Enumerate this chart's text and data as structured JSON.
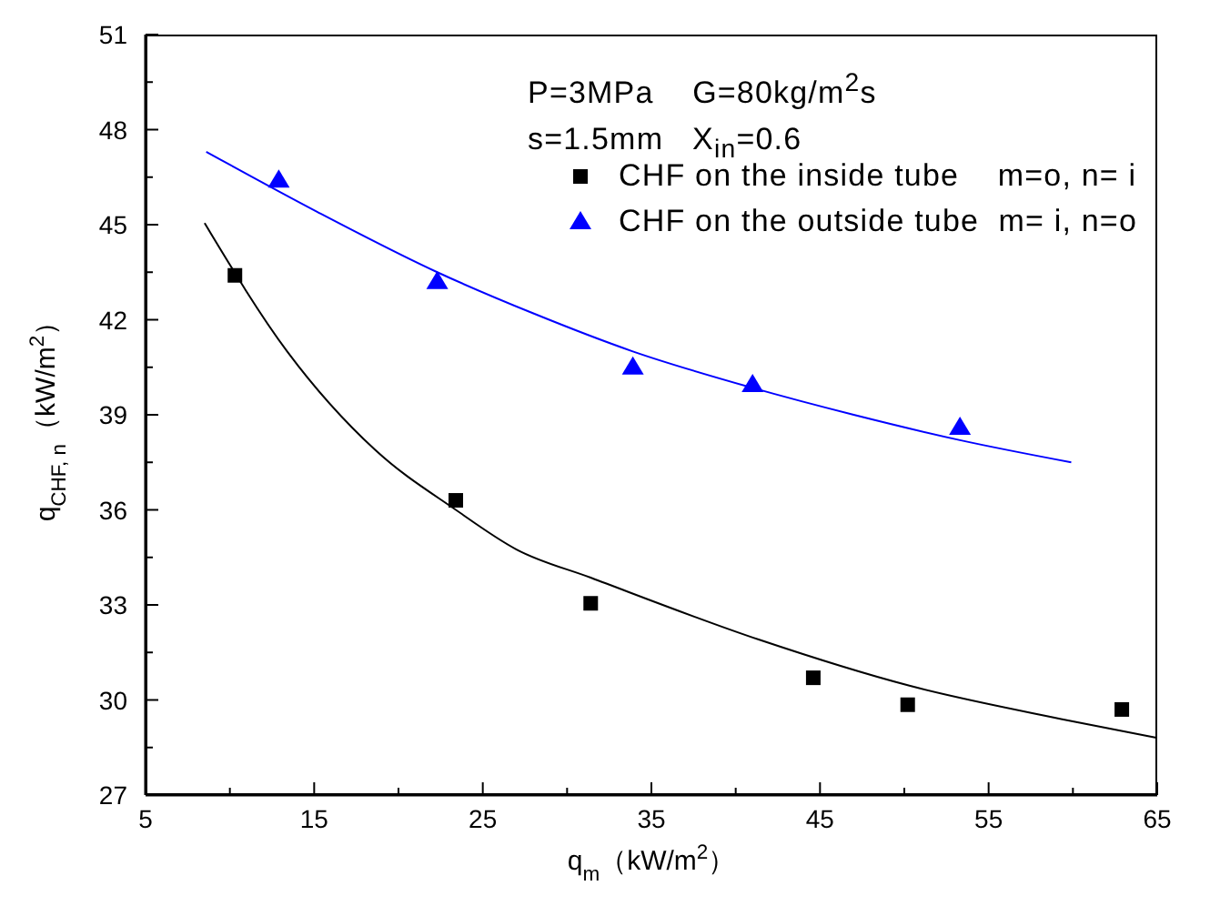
{
  "chart_data": {
    "type": "scatter",
    "xlabel": "q$_{m}$（kW/m$^{2}$）",
    "ylabel": "q$_{CHF, n}$（kW/m$^{2}$）",
    "annotations": [
      "P=3MPa    G=80kg/m$^{2}$s",
      "s=1.5mm   X$_{in}$=0.6"
    ],
    "xlim": [
      5,
      65
    ],
    "xticks": [
      5,
      {
        "value": 10,
        "label": null
      },
      15,
      {
        "value": 20,
        "label": null
      },
      25,
      {
        "value": 30,
        "label": null
      },
      35,
      {
        "value": 40,
        "label": null
      },
      45,
      {
        "value": 50,
        "label": null
      },
      55,
      {
        "value": 60,
        "label": null
      },
      65
    ],
    "ylim": [
      27,
      51
    ],
    "yticks": [
      27,
      {
        "value": 28.5,
        "label": null
      },
      30,
      {
        "value": 31.5,
        "label": null
      },
      33,
      {
        "value": 34.5,
        "label": null
      },
      36,
      {
        "value": 37.5,
        "label": null
      },
      39,
      {
        "value": 40.5,
        "label": null
      },
      42,
      {
        "value": 43.5,
        "label": null
      },
      45,
      {
        "value": 46.5,
        "label": null
      },
      48,
      {
        "value": 49.5,
        "label": null
      },
      51
    ],
    "grid": false,
    "legend": "top right",
    "series": [
      {
        "name": "CHF on the inside tube    m=o, n= i",
        "marker": "square",
        "color": "#000000",
        "x": [
          10.3,
          23.4,
          31.4,
          44.6,
          50.2,
          62.9
        ],
        "values": [
          43.4,
          36.3,
          33.05,
          30.7,
          29.85,
          29.7
        ]
      },
      {
        "name": "CHF on the outside tube  m= i, n=o",
        "marker": "triangle",
        "color": "#0000ff",
        "x": [
          12.9,
          22.3,
          33.9,
          41.0,
          53.3
        ],
        "values": [
          46.4,
          43.2,
          40.5,
          39.95,
          38.6
        ]
      },
      {
        "type": "line",
        "marker": "none",
        "line_style": "solid",
        "color": "#000000",
        "x": [
          8.5,
          13.4,
          18.6,
          23.4,
          27,
          31.4,
          41.4,
          50.3,
          59.3,
          65
        ],
        "values": [
          45.05,
          41.0,
          37.9,
          36.0,
          34.75,
          33.86,
          31.9,
          30.45,
          29.4,
          28.8
        ]
      },
      {
        "type": "line",
        "marker": "none",
        "line_style": "solid",
        "color": "#0000ff",
        "x": [
          8.6,
          15.2,
          22.3,
          28,
          33.9,
          41.0,
          47,
          53.3,
          59.9
        ],
        "values": [
          47.3,
          45.4,
          43.5,
          42.2,
          41.0,
          39.85,
          39.0,
          38.2,
          37.5
        ]
      }
    ]
  }
}
